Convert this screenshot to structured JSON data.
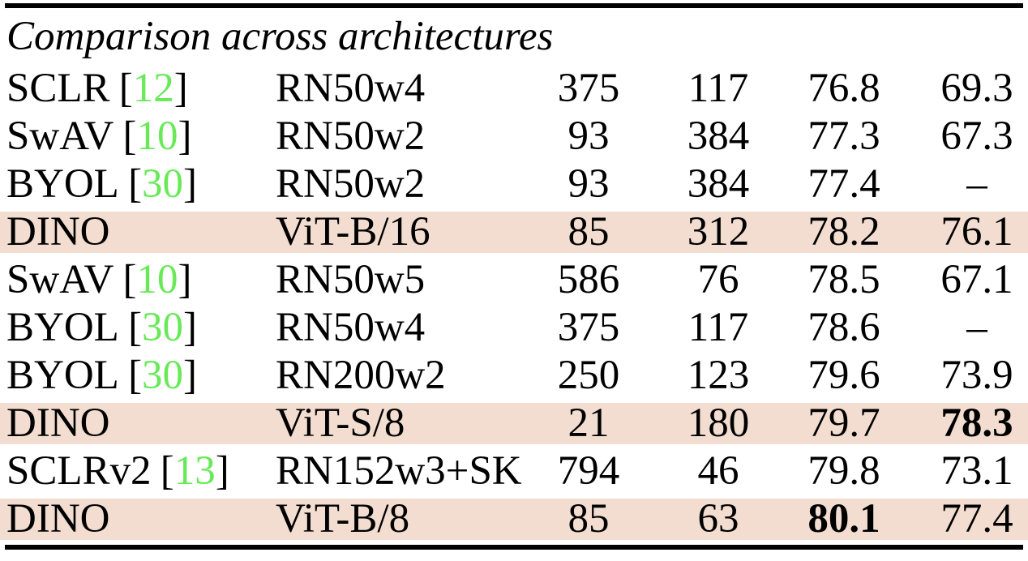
{
  "colors": {
    "highlight_bg": "#f2ddd0",
    "citation_green": "#68ea58",
    "rule_black": "#000000"
  },
  "table": {
    "section_title": "Comparison across architectures",
    "rows": [
      {
        "method": "SCLR",
        "cite_l": "[",
        "cite": "12",
        "cite_r": "]",
        "arch": "RN50w4",
        "params": "375",
        "imps": "117",
        "linear": "76.8",
        "knn": "69.3",
        "highlight": false
      },
      {
        "method": "SwAV",
        "cite_l": "[",
        "cite": "10",
        "cite_r": "]",
        "arch": "RN50w2",
        "params": "93",
        "imps": "384",
        "linear": "77.3",
        "knn": "67.3",
        "highlight": false
      },
      {
        "method": "BYOL",
        "cite_l": "[",
        "cite": "30",
        "cite_r": "]",
        "arch": "RN50w2",
        "params": "93",
        "imps": "384",
        "linear": "77.4",
        "knn": "–",
        "highlight": false
      },
      {
        "method": "DINO",
        "cite_l": "",
        "cite": "",
        "cite_r": "",
        "arch": "ViT-B/16",
        "params": "85",
        "imps": "312",
        "linear": "78.2",
        "knn": "76.1",
        "highlight": true
      },
      {
        "method": "SwAV",
        "cite_l": "[",
        "cite": "10",
        "cite_r": "]",
        "arch": "RN50w5",
        "params": "586",
        "imps": "76",
        "linear": "78.5",
        "knn": "67.1",
        "highlight": false
      },
      {
        "method": "BYOL",
        "cite_l": "[",
        "cite": "30",
        "cite_r": "]",
        "arch": "RN50w4",
        "params": "375",
        "imps": "117",
        "linear": "78.6",
        "knn": "–",
        "highlight": false
      },
      {
        "method": "BYOL",
        "cite_l": "[",
        "cite": "30",
        "cite_r": "]",
        "arch": "RN200w2",
        "params": "250",
        "imps": "123",
        "linear": "79.6",
        "knn": "73.9",
        "highlight": false
      },
      {
        "method": "DINO",
        "cite_l": "",
        "cite": "",
        "cite_r": "",
        "arch": "ViT-S/8",
        "params": "21",
        "imps": "180",
        "linear": "79.7",
        "knn": "78.3",
        "highlight": true,
        "knn_bold": true
      },
      {
        "method": "SCLRv2",
        "cite_l": "[",
        "cite": "13",
        "cite_r": "]",
        "arch": "RN152w3+SK",
        "params": "794",
        "imps": "46",
        "linear": "79.8",
        "knn": "73.1",
        "highlight": false
      },
      {
        "method": "DINO",
        "cite_l": "",
        "cite": "",
        "cite_r": "",
        "arch": "ViT-B/8",
        "params": "85",
        "imps": "63",
        "linear": "80.1",
        "knn": "77.4",
        "highlight": true,
        "linear_bold": true
      }
    ]
  }
}
